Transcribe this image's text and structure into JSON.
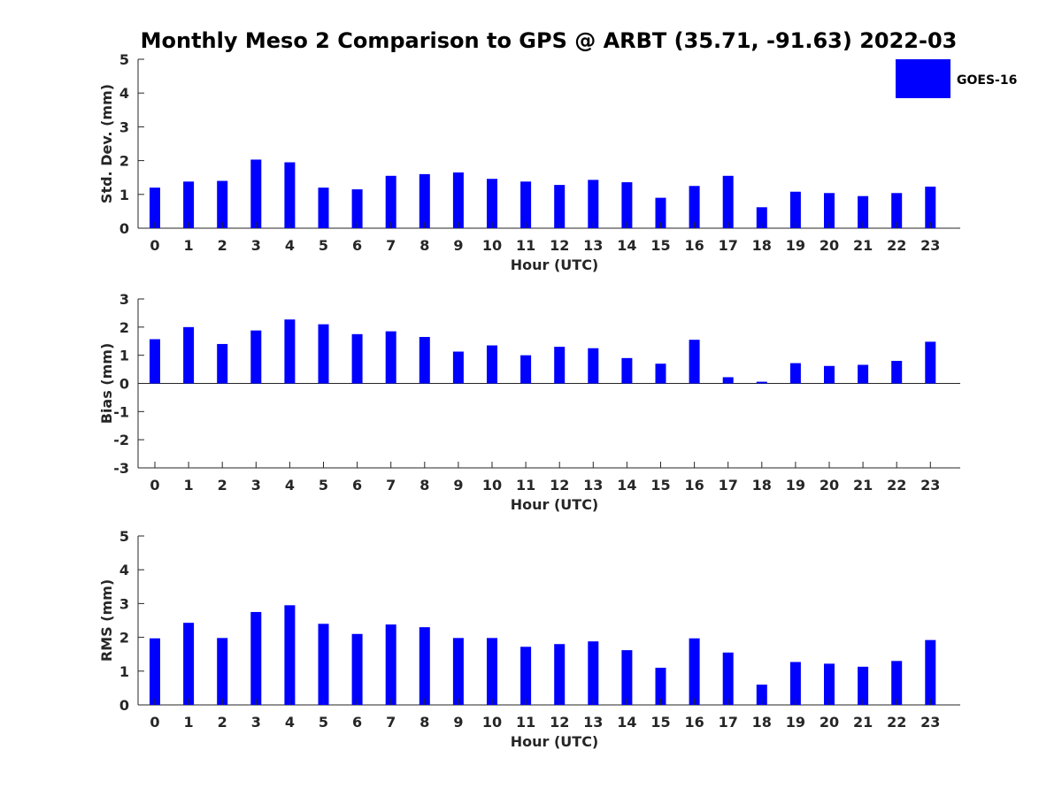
{
  "title": "Monthly Meso 2 Comparison to GPS @ ARBT (35.71, -91.63) 2022-03",
  "legend": {
    "label": "GOES-16",
    "color": "#0000ff",
    "placement": "top-right"
  },
  "chart_data": [
    {
      "type": "bar",
      "name": "std-dev",
      "xlabel": "Hour (UTC)",
      "ylabel": "Std. Dev. (mm)",
      "ylim": [
        0,
        5
      ],
      "yticks": [
        0,
        1,
        2,
        3,
        4,
        5
      ],
      "categories": [
        "0",
        "1",
        "2",
        "3",
        "4",
        "5",
        "6",
        "7",
        "8",
        "9",
        "10",
        "11",
        "12",
        "13",
        "14",
        "15",
        "16",
        "17",
        "18",
        "19",
        "20",
        "21",
        "22",
        "23"
      ],
      "series": [
        {
          "name": "GOES-16",
          "values": [
            1.2,
            1.38,
            1.4,
            2.03,
            1.95,
            1.2,
            1.15,
            1.55,
            1.6,
            1.65,
            1.46,
            1.38,
            1.28,
            1.43,
            1.36,
            0.9,
            1.25,
            1.55,
            0.62,
            1.08,
            1.04,
            0.95,
            1.04,
            1.23
          ]
        }
      ]
    },
    {
      "type": "bar",
      "name": "bias",
      "xlabel": "Hour (UTC)",
      "ylabel": "Bias (mm)",
      "ylim": [
        -3,
        3
      ],
      "yticks": [
        -3,
        -2,
        -1,
        0,
        1,
        2,
        3
      ],
      "zero_line": true,
      "categories": [
        "0",
        "1",
        "2",
        "3",
        "4",
        "5",
        "6",
        "7",
        "8",
        "9",
        "10",
        "11",
        "12",
        "13",
        "14",
        "15",
        "16",
        "17",
        "18",
        "19",
        "20",
        "21",
        "22",
        "23"
      ],
      "series": [
        {
          "name": "GOES-16",
          "values": [
            1.57,
            2.0,
            1.4,
            1.88,
            2.27,
            2.1,
            1.75,
            1.85,
            1.65,
            1.13,
            1.35,
            1.0,
            1.3,
            1.25,
            0.9,
            0.7,
            1.55,
            0.22,
            0.06,
            0.72,
            0.62,
            0.66,
            0.8,
            1.48
          ]
        }
      ]
    },
    {
      "type": "bar",
      "name": "rms",
      "xlabel": "Hour (UTC)",
      "ylabel": "RMS (mm)",
      "ylim": [
        0,
        5
      ],
      "yticks": [
        0,
        1,
        2,
        3,
        4,
        5
      ],
      "categories": [
        "0",
        "1",
        "2",
        "3",
        "4",
        "5",
        "6",
        "7",
        "8",
        "9",
        "10",
        "11",
        "12",
        "13",
        "14",
        "15",
        "16",
        "17",
        "18",
        "19",
        "20",
        "21",
        "22",
        "23"
      ],
      "series": [
        {
          "name": "GOES-16",
          "values": [
            1.97,
            2.43,
            1.98,
            2.75,
            2.95,
            2.4,
            2.1,
            2.38,
            2.3,
            1.98,
            1.98,
            1.72,
            1.8,
            1.88,
            1.62,
            1.1,
            1.97,
            1.55,
            0.6,
            1.27,
            1.22,
            1.13,
            1.3,
            1.92
          ]
        }
      ]
    }
  ]
}
